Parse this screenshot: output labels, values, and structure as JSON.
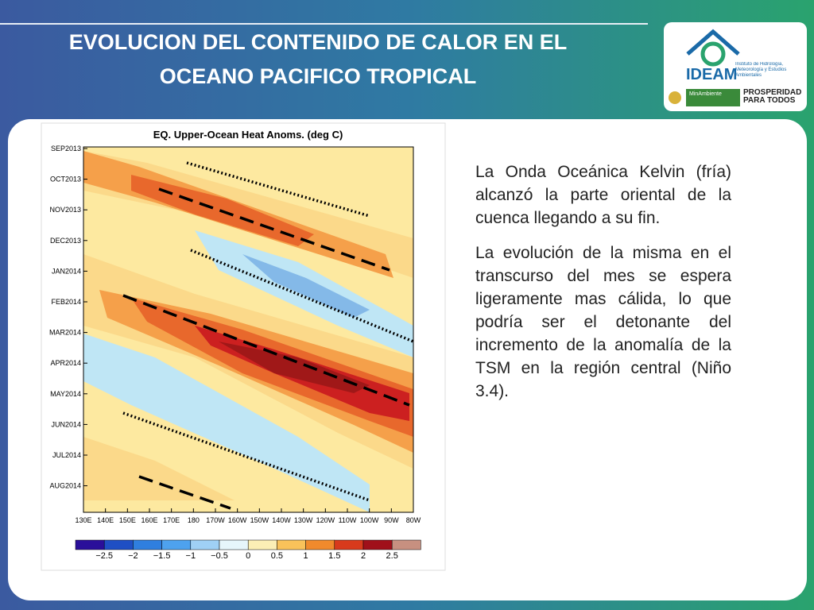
{
  "header": {
    "title": "EVOLUCION DEL CONTENIDO DE CALOR EN EL OCEANO PACIFICO TROPICAL"
  },
  "logo": {
    "name": "IDEAM",
    "institute": "Instituto de Hidrología, Meteorología y Estudios Ambientales",
    "ministry": "MinAmbiente",
    "partner": "PROSPERIDAD PARA TODOS"
  },
  "figure": {
    "title": "EQ. Upper-Ocean Heat Anoms. (deg C)",
    "y_labels": [
      "SEP2013",
      "OCT2013",
      "NOV2013",
      "DEC2013",
      "JAN2014",
      "FEB2014",
      "MAR2014",
      "APR2014",
      "MAY2014",
      "JUN2014",
      "JUL2014",
      "AUG2014"
    ],
    "x_labels": [
      "130E",
      "140E",
      "150E",
      "160E",
      "170E",
      "180",
      "170W",
      "160W",
      "150W",
      "140W",
      "130W",
      "120W",
      "110W",
      "100W",
      "90W",
      "80W"
    ],
    "colorbar_labels": [
      "−2.5",
      "−2",
      "−1.5",
      "−1",
      "−0.5",
      "0",
      "0.5",
      "1",
      "1.5",
      "2",
      "2.5"
    ]
  },
  "text": {
    "paragraphs": [
      "La Onda Oceánica Kelvin (fría) alcanzó la parte oriental de la cuenca llegando a su fin.",
      "La evolución de la misma en el transcurso del mes se espera ligeramente mas cálida, lo que podría ser el detonante del incremento de la anomalía de la TSM en la región central (Niño 3.4)."
    ]
  }
}
